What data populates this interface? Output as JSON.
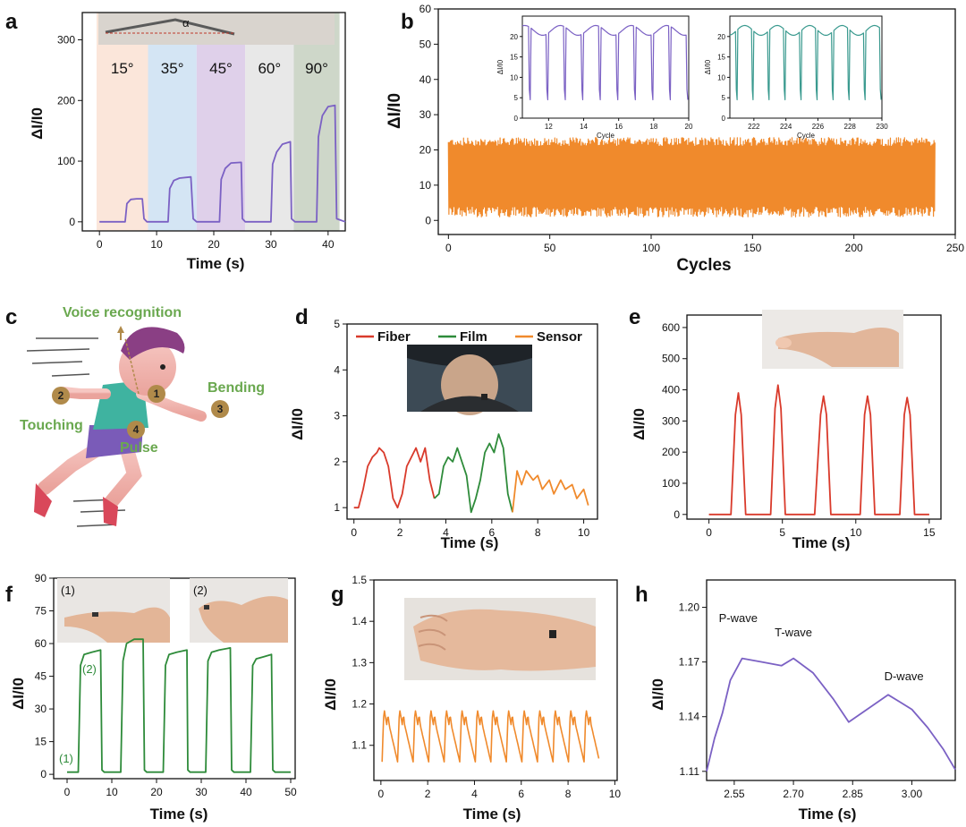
{
  "colors": {
    "purple": "#7b61c4",
    "orange": "#f08a2c",
    "green": "#2e8b3a",
    "red": "#d93a2b",
    "teal": "#3a9a8f",
    "axis": "#111111",
    "label_green": "#6aa84f",
    "badge": "#b08a4a",
    "band_colors": [
      "#fbe3d6",
      "#cfe2f3",
      "#dccbe8",
      "#e6e6e6",
      "#c9d3c3"
    ]
  },
  "labels": {
    "a": "a",
    "b": "b",
    "c": "c",
    "d": "d",
    "e": "e",
    "f": "f",
    "g": "g",
    "h": "h"
  },
  "chart_data": [
    {
      "id": "a",
      "type": "line",
      "xlabel": "Time (s)",
      "ylabel": "ΔI/I0",
      "xlim": [
        -3,
        43
      ],
      "ylim": [
        -15,
        345
      ],
      "xticks": [
        0,
        10,
        20,
        30,
        40
      ],
      "yticks": [
        0,
        100,
        200,
        300
      ],
      "bands": [
        {
          "label": "15°",
          "x0": -0.5,
          "x1": 8.5
        },
        {
          "label": "35°",
          "x0": 8.5,
          "x1": 17
        },
        {
          "label": "45°",
          "x0": 17,
          "x1": 25.5
        },
        {
          "label": "60°",
          "x0": 25.5,
          "x1": 34
        },
        {
          "label": "90°",
          "x0": 34,
          "x1": 42
        }
      ],
      "inset_annotation": "α",
      "series": [
        {
          "x": [
            0,
            4.5,
            4.8,
            5.5,
            6.5,
            7.5,
            7.8,
            8.3,
            12,
            12.3,
            13,
            14,
            16,
            16.4,
            17,
            21,
            21.3,
            22,
            23,
            24.8,
            25,
            25.5,
            30,
            30.3,
            31,
            32,
            33.4,
            33.6,
            34.2,
            38,
            38.3,
            39,
            40,
            41.2,
            41.5,
            43
          ],
          "y": [
            0,
            0,
            30,
            37,
            38,
            38,
            5,
            0,
            0,
            55,
            68,
            72,
            74,
            5,
            0,
            0,
            70,
            88,
            97,
            98,
            5,
            0,
            0,
            95,
            115,
            128,
            132,
            5,
            0,
            0,
            140,
            175,
            190,
            192,
            5,
            0
          ]
        }
      ]
    },
    {
      "id": "b",
      "type": "line",
      "xlabel": "Cycles",
      "ylabel": "ΔI/I0",
      "xlim": [
        -5,
        250
      ],
      "ylim": [
        -4,
        60
      ],
      "xticks": [
        0,
        50,
        100,
        150,
        200,
        250
      ],
      "yticks": [
        0,
        10,
        20,
        30,
        40,
        50,
        60
      ],
      "series": [
        {
          "name": "",
          "cycles": 240,
          "peak": 22,
          "valley": 1,
          "color_key": "orange"
        }
      ],
      "insets": [
        {
          "xlabel": "Cycle",
          "ylabel": "ΔI/I0",
          "xlim": [
            10.5,
            20
          ],
          "ylim": [
            0,
            25
          ],
          "xticks": [
            12,
            14,
            16,
            18,
            20
          ],
          "yticks": [
            0,
            5,
            10,
            15,
            20
          ],
          "color_key": "purple",
          "start": 11,
          "end": 20,
          "peak": 22,
          "valley": 2
        },
        {
          "xlabel": "Cycle",
          "ylabel": "ΔI/I0",
          "xlim": [
            220.5,
            230
          ],
          "ylim": [
            0,
            25
          ],
          "xticks": [
            222,
            224,
            226,
            228,
            230
          ],
          "yticks": [
            0,
            5,
            10,
            15,
            20
          ],
          "color_key": "teal",
          "start": 221,
          "end": 230,
          "peak": 22,
          "valley": 2
        }
      ]
    },
    {
      "id": "d",
      "type": "line",
      "xlabel": "Time (s)",
      "ylabel": "ΔI/I0",
      "xlim": [
        -0.3,
        10.6
      ],
      "ylim": [
        0.75,
        5
      ],
      "xticks": [
        0,
        2,
        4,
        6,
        8,
        10
      ],
      "yticks": [
        1,
        2,
        3,
        4,
        5
      ],
      "series": [
        {
          "name": "Fiber",
          "color_key": "red",
          "x": [
            0,
            0.2,
            0.4,
            0.6,
            0.8,
            1.0,
            1.1,
            1.3,
            1.5,
            1.7,
            1.9,
            2.1,
            2.3,
            2.5,
            2.7,
            2.9,
            3.1,
            3.3,
            3.5
          ],
          "y": [
            1.0,
            1.0,
            1.4,
            1.9,
            2.1,
            2.2,
            2.3,
            2.2,
            1.9,
            1.2,
            1.0,
            1.3,
            1.9,
            2.1,
            2.3,
            2.0,
            2.3,
            1.6,
            1.2
          ]
        },
        {
          "name": "Film",
          "color_key": "green",
          "x": [
            3.5,
            3.7,
            3.9,
            4.1,
            4.3,
            4.5,
            4.7,
            4.9,
            5.1,
            5.3,
            5.5,
            5.7,
            5.9,
            6.1,
            6.3,
            6.5,
            6.7,
            6.9
          ],
          "y": [
            1.2,
            1.3,
            1.9,
            2.1,
            2.0,
            2.3,
            2.0,
            1.7,
            0.9,
            1.2,
            1.6,
            2.2,
            2.4,
            2.2,
            2.6,
            2.3,
            1.3,
            0.9
          ]
        },
        {
          "name": "Sensor",
          "color_key": "orange",
          "x": [
            6.9,
            7.1,
            7.3,
            7.5,
            7.8,
            8.0,
            8.2,
            8.5,
            8.7,
            9.0,
            9.2,
            9.5,
            9.7,
            10.0,
            10.2
          ],
          "y": [
            0.9,
            1.8,
            1.5,
            1.8,
            1.6,
            1.7,
            1.4,
            1.6,
            1.3,
            1.6,
            1.4,
            1.5,
            1.2,
            1.4,
            1.05
          ]
        }
      ],
      "legend": [
        "Fiber",
        "Film",
        "Sensor"
      ]
    },
    {
      "id": "e",
      "type": "line",
      "xlabel": "Time (s)",
      "ylabel": "ΔI/I0",
      "xlim": [
        -1.5,
        15.8
      ],
      "ylim": [
        -15,
        640
      ],
      "xticks": [
        0,
        5,
        10,
        15
      ],
      "yticks": [
        0,
        100,
        200,
        300,
        400,
        500,
        600
      ],
      "series": [
        {
          "name": "",
          "color_key": "red",
          "x": [
            0,
            1.5,
            1.8,
            2.0,
            2.2,
            2.5,
            4.2,
            4.5,
            4.7,
            4.9,
            5.2,
            7.2,
            7.6,
            7.8,
            8.0,
            8.3,
            10.3,
            10.6,
            10.8,
            11.0,
            11.3,
            13.0,
            13.3,
            13.5,
            13.7,
            14.0,
            15.0
          ],
          "y": [
            0,
            0,
            320,
            390,
            320,
            0,
            0,
            340,
            415,
            340,
            0,
            0,
            320,
            380,
            320,
            0,
            0,
            320,
            380,
            320,
            0,
            0,
            320,
            375,
            320,
            0,
            0
          ]
        }
      ]
    },
    {
      "id": "f",
      "type": "line",
      "xlabel": "Time (s)",
      "ylabel": "ΔI/I0",
      "xlim": [
        -3,
        51
      ],
      "ylim": [
        -2,
        90
      ],
      "xticks": [
        0,
        10,
        20,
        30,
        40,
        50
      ],
      "yticks": [
        0,
        15,
        30,
        45,
        60,
        75,
        90
      ],
      "annotations": [
        "(1)",
        "(2)"
      ],
      "inset_labels": [
        "(1)",
        "(2)"
      ],
      "series": [
        {
          "name": "",
          "color_key": "green",
          "x": [
            0,
            2.5,
            3.0,
            3.8,
            5.5,
            7.5,
            7.8,
            8.3,
            12,
            12.5,
            13.3,
            15,
            17,
            17.3,
            17.8,
            21.5,
            22,
            22.8,
            24.5,
            26.8,
            27,
            27.5,
            31,
            31.5,
            32.3,
            34,
            36.5,
            36.8,
            37.3,
            41,
            41.5,
            42.3,
            44,
            45.7,
            46,
            46.5,
            50
          ],
          "y": [
            1,
            1,
            50,
            55,
            56,
            57,
            2,
            1,
            1,
            52,
            60,
            62,
            62,
            2,
            1,
            1,
            50,
            55,
            56,
            57,
            2,
            1,
            1,
            52,
            56,
            57,
            58,
            2,
            1,
            1,
            50,
            53,
            54,
            55,
            2,
            1,
            1
          ]
        }
      ]
    },
    {
      "id": "g",
      "type": "line",
      "xlabel": "Time (s)",
      "ylabel": "ΔI/I0",
      "xlim": [
        -0.3,
        10.1
      ],
      "ylim": [
        1.015,
        1.5
      ],
      "xticks": [
        0,
        2,
        4,
        6,
        8,
        10
      ],
      "yticks": [
        1.1,
        1.2,
        1.3,
        1.4,
        1.5
      ],
      "series": [
        {
          "name": "",
          "color_key": "orange",
          "beats": 14,
          "t0": 0.05,
          "t1": 9.35,
          "peak": 1.19,
          "notch": 1.15,
          "valley": 1.06
        }
      ]
    },
    {
      "id": "h",
      "type": "line",
      "xlabel": "Time (s)",
      "ylabel": "ΔI/I0",
      "xlim": [
        2.48,
        3.11
      ],
      "ylim": [
        1.105,
        1.215
      ],
      "xticks": [
        2.55,
        2.7,
        2.85,
        3.0
      ],
      "xtick_labels": [
        "2.55",
        "2.70",
        "2.85",
        "3.00"
      ],
      "yticks": [
        1.11,
        1.14,
        1.17,
        1.2
      ],
      "ytick_labels": [
        "1.11",
        "1.14",
        "1.17",
        "1.20"
      ],
      "series": [
        {
          "name": "",
          "color_key": "purple",
          "x": [
            2.48,
            2.5,
            2.52,
            2.54,
            2.57,
            2.62,
            2.67,
            2.7,
            2.75,
            2.8,
            2.84,
            2.9,
            2.94,
            2.97,
            3.0,
            3.04,
            3.08,
            3.11
          ],
          "y": [
            1.11,
            1.128,
            1.142,
            1.16,
            1.172,
            1.17,
            1.168,
            1.172,
            1.164,
            1.15,
            1.137,
            1.146,
            1.152,
            1.148,
            1.144,
            1.134,
            1.122,
            1.111
          ]
        }
      ],
      "annotations": [
        {
          "text": "P-wave",
          "x": 2.56,
          "y": 1.192
        },
        {
          "text": "T-wave",
          "x": 2.7,
          "y": 1.184
        },
        {
          "text": "D-wave",
          "x": 2.98,
          "y": 1.16
        }
      ]
    }
  ],
  "illustration_c": {
    "voice": "Voice recognition",
    "bending": "Bending",
    "touching": "Touching",
    "pulse": "Pulse",
    "badges": [
      "1",
      "2",
      "3",
      "4"
    ]
  }
}
